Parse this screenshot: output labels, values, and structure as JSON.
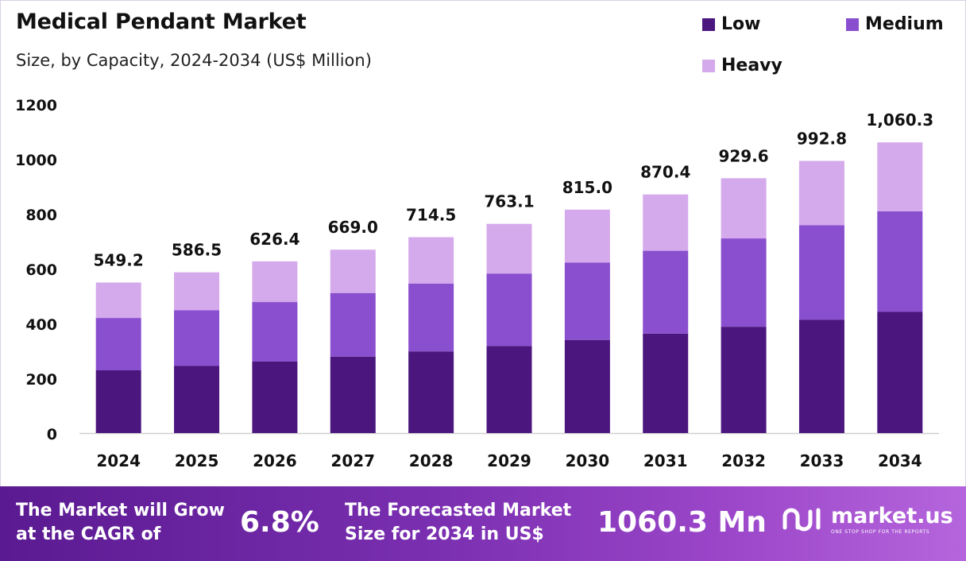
{
  "colors": {
    "low": "#4b177f",
    "medium": "#8a4fcf",
    "heavy": "#d4aaec",
    "axis": "#cfcfcf",
    "text": "#111111"
  },
  "header": {
    "title": "Medical Pendant Market",
    "subtitle": "Size, by Capacity, 2024-2034 (US$ Million)"
  },
  "legend": {
    "items": [
      {
        "label": "Low",
        "color": "#4b177f"
      },
      {
        "label": "Medium",
        "color": "#8a4fcf"
      },
      {
        "label": "Heavy",
        "color": "#d4aaec"
      }
    ]
  },
  "chart_data": {
    "type": "bar",
    "stacked": true,
    "title": "Medical Pendant Market",
    "subtitle": "Size, by Capacity, 2024-2034 (US$ Million)",
    "xlabel": "",
    "ylabel": "",
    "ylim": [
      0,
      1200
    ],
    "yticks": [
      0,
      200,
      400,
      600,
      800,
      1000,
      1200
    ],
    "grid": false,
    "legend_position": "top-right",
    "categories": [
      "2024",
      "2025",
      "2026",
      "2027",
      "2028",
      "2029",
      "2030",
      "2031",
      "2032",
      "2033",
      "2034"
    ],
    "series": [
      {
        "name": "Low",
        "values": [
          229,
          245,
          261,
          279,
          298,
          318,
          340,
          363,
          388,
          414,
          442
        ]
      },
      {
        "name": "Medium",
        "values": [
          191,
          203,
          217,
          232,
          247,
          264,
          282,
          302,
          322,
          344,
          367
        ]
      },
      {
        "name": "Heavy",
        "values": [
          129.2,
          138.5,
          148.4,
          158.0,
          169.5,
          181.1,
          193.0,
          205.4,
          219.6,
          234.8,
          251.3
        ]
      }
    ],
    "totals": [
      549.2,
      586.5,
      626.4,
      669.0,
      714.5,
      763.1,
      815.0,
      870.4,
      929.6,
      992.8,
      1060.3
    ],
    "total_labels": [
      "549.2",
      "586.5",
      "626.4",
      "669.0",
      "714.5",
      "763.1",
      "815.0",
      "870.4",
      "929.6",
      "992.8",
      "1,060.3"
    ]
  },
  "footer": {
    "cagr_text_line1": "The Market will Grow",
    "cagr_text_line2": "at the CAGR of",
    "cagr_value": "6.8%",
    "forecast_text_line1": "The Forecasted Market",
    "forecast_text_line2": "Size for 2034 in US$",
    "forecast_value": "1060.3 Mn",
    "brand_name": "market.us",
    "brand_tagline": "ONE STOP SHOP FOR THE REPORTS",
    "brand_icon": "market-us-logo-icon"
  }
}
